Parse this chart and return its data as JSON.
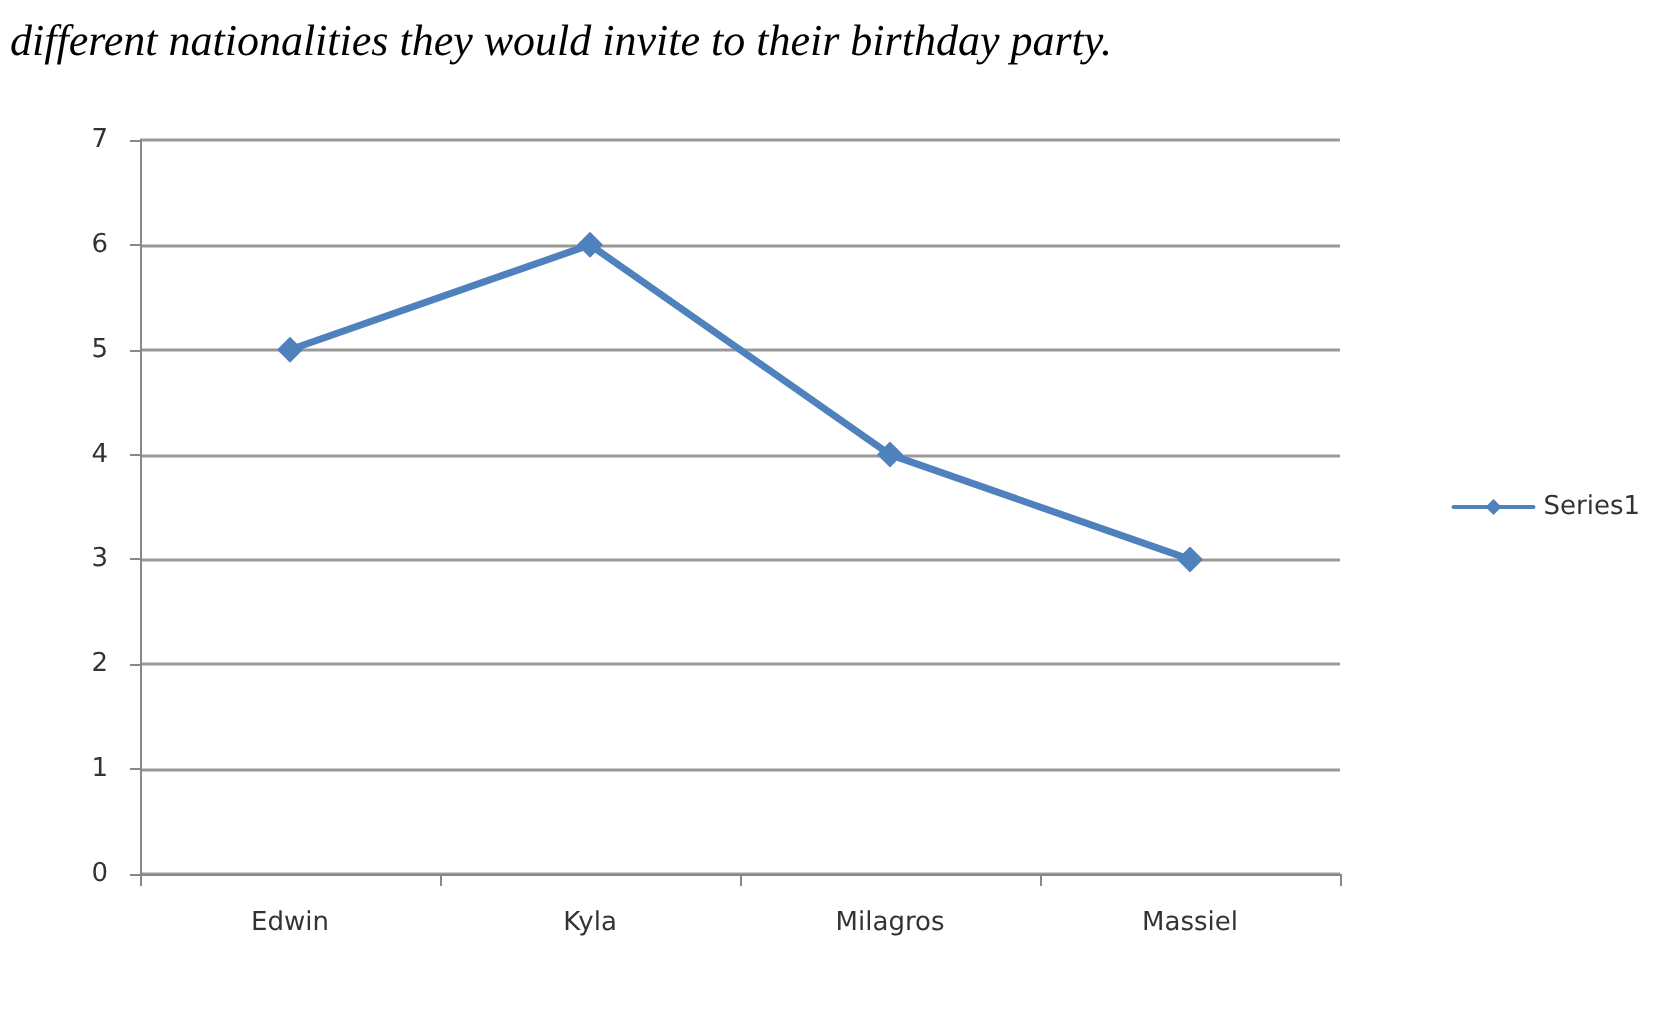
{
  "chart_data": {
    "type": "line",
    "title": "different nationalities they would invite to their birthday party.",
    "categories": [
      "Edwin",
      "Kyla",
      "Milagros",
      "Massiel"
    ],
    "series": [
      {
        "name": "Series1",
        "color": "#4f81bd",
        "values": [
          5,
          6,
          4,
          3
        ]
      }
    ],
    "ylim": [
      0,
      7
    ],
    "yticks": [
      0,
      1,
      2,
      3,
      4,
      5,
      6,
      7
    ],
    "grid": "y",
    "legend": "right",
    "marker": "diamond",
    "line_style": "solid"
  }
}
